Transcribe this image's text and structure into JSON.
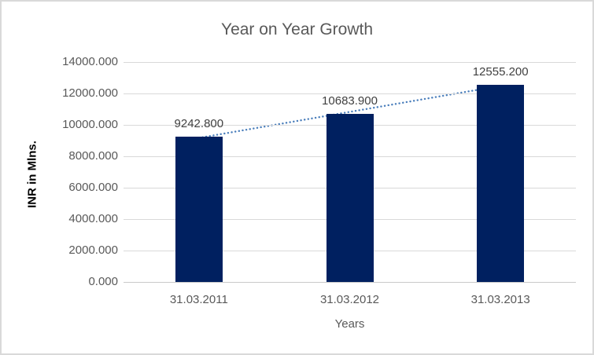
{
  "figure": {
    "background": "#ffffff",
    "border_color": "#d9d9d9"
  },
  "chart_data": {
    "type": "bar",
    "title": "Year on Year Growth",
    "categories": [
      "31.03.2011",
      "31.03.2012",
      "31.03.2013"
    ],
    "values": [
      9242.8,
      10683.9,
      12555.2
    ],
    "data_labels": [
      "9242.800",
      "10683.900",
      "12555.200"
    ],
    "xlabel": "Years",
    "ylabel": "INR in Mlns.",
    "ylim": [
      0,
      14000
    ],
    "ytick_step": 2000,
    "ytick_labels": [
      "0.000",
      "2000.000",
      "4000.000",
      "6000.000",
      "8000.000",
      "10000.000",
      "12000.000",
      "14000.000"
    ],
    "grid": true,
    "legend": "none",
    "bar_color": "#002060",
    "gridline_color": "#d9d9d9",
    "title_color": "#595959",
    "tick_label_color": "#595959",
    "data_label_color": "#404040",
    "trendline": {
      "type": "linear",
      "style": "dotted",
      "color": "#4a7ebb"
    }
  }
}
